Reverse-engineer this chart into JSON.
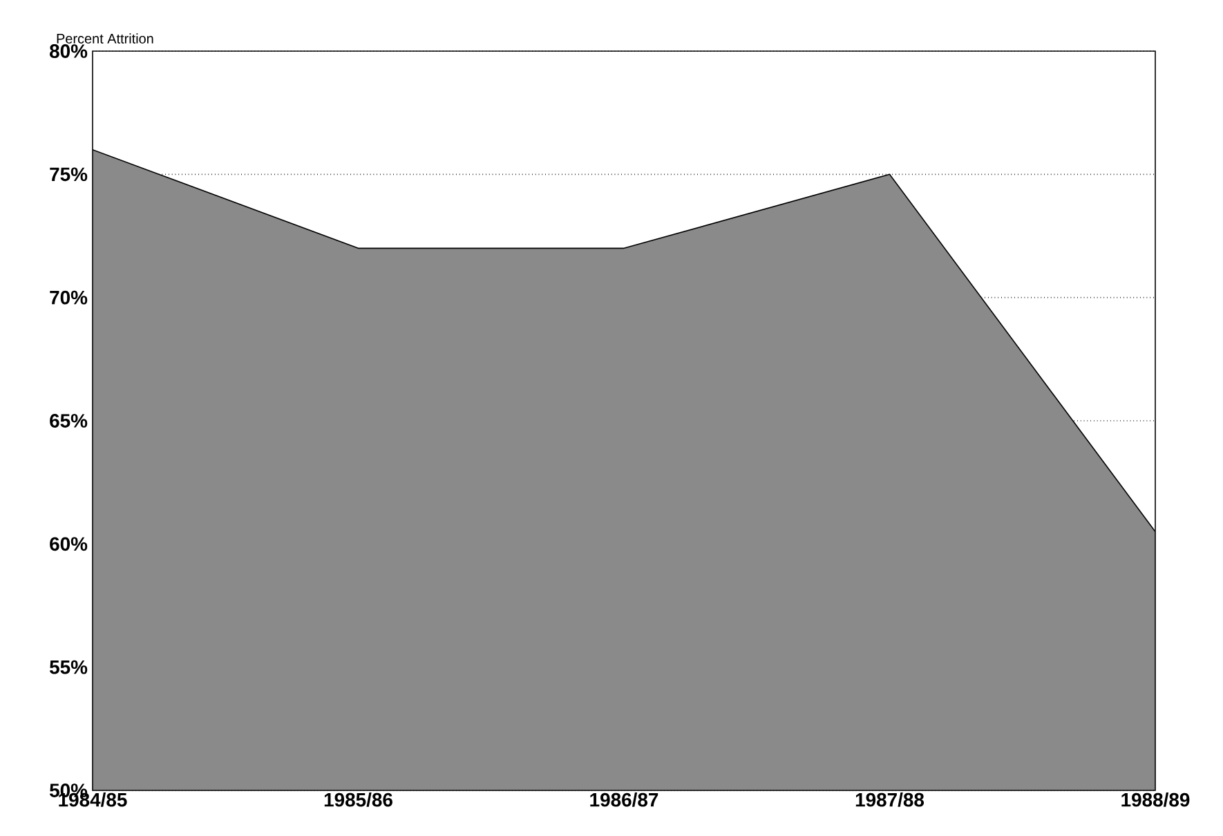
{
  "chart_data": {
    "type": "area",
    "ylabel": "Percent Attrition",
    "categories": [
      "1984/85",
      "1985/86",
      "1986/87",
      "1987/88",
      "1988/89"
    ],
    "values": [
      76.0,
      72.0,
      72.0,
      75.0,
      60.5
    ],
    "color": "#8a8a8a",
    "ylim": [
      50,
      80
    ],
    "yticks": [
      {
        "value": 50,
        "label": "50%"
      },
      {
        "value": 55,
        "label": "55%"
      },
      {
        "value": 60,
        "label": "60%"
      },
      {
        "value": 65,
        "label": "65%"
      },
      {
        "value": 70,
        "label": "70%"
      },
      {
        "value": 75,
        "label": "75%"
      },
      {
        "value": 80,
        "label": "80%"
      }
    ],
    "grid": "y"
  }
}
